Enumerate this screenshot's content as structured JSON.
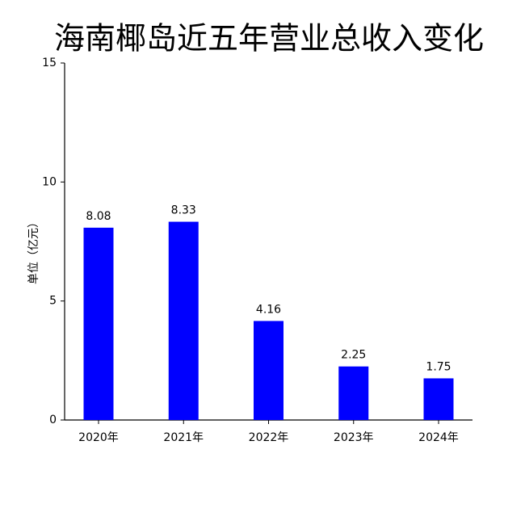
{
  "chart_data": {
    "type": "bar",
    "title": "海南椰岛近五年营业总收入变化",
    "y_label": "单位（亿元）",
    "categories": [
      "2020年",
      "2021年",
      "2022年",
      "2023年",
      "2024年"
    ],
    "values": [
      8.08,
      8.33,
      4.16,
      2.25,
      1.75
    ],
    "color": "#0000ff",
    "ylim": [
      0,
      15
    ],
    "yticks": [
      0,
      5,
      10,
      15
    ],
    "grid": false
  }
}
